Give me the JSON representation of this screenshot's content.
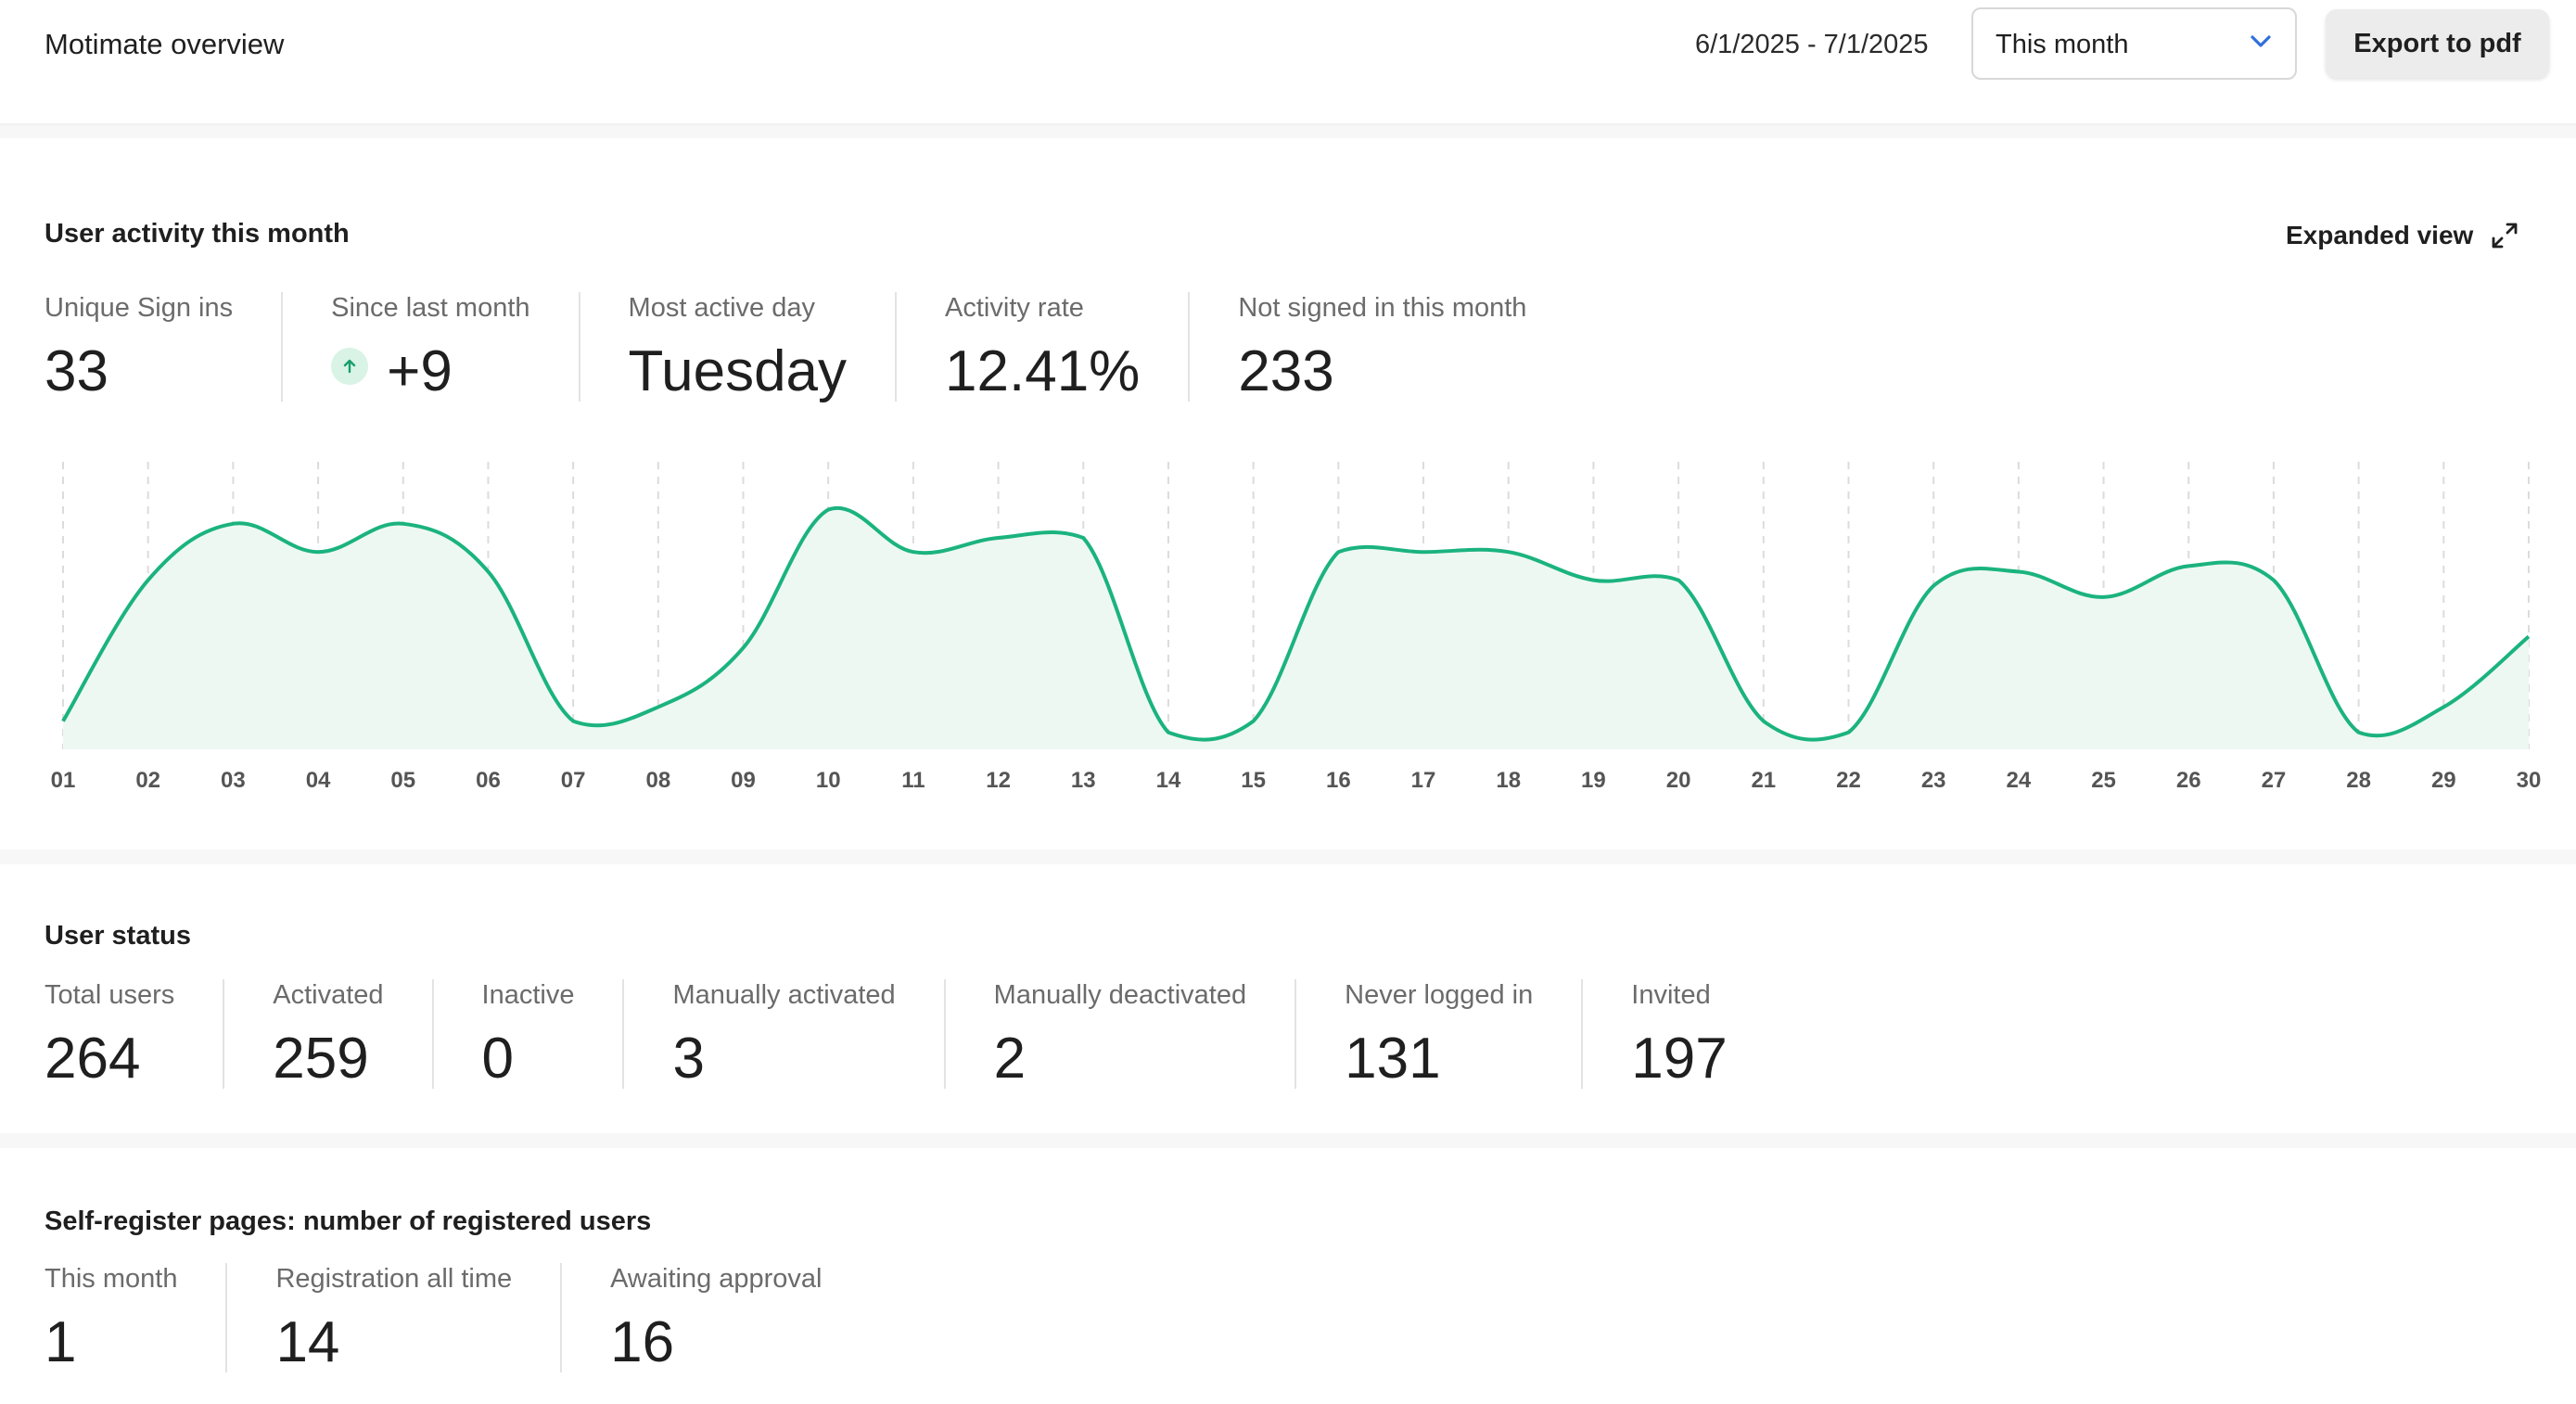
{
  "header": {
    "title": "Motimate overview",
    "date_range": "6/1/2025 - 7/1/2025",
    "period_select": {
      "selected": "This month"
    },
    "export_label": "Export to pdf"
  },
  "activity": {
    "title": "User activity this month",
    "expanded_label": "Expanded view",
    "metrics": [
      {
        "label": "Unique Sign ins",
        "value": "33"
      },
      {
        "label": "Since last month",
        "value": "+9"
      },
      {
        "label": "Most active day",
        "value": "Tuesday"
      },
      {
        "label": "Activity rate",
        "value": "12.41%"
      },
      {
        "label": "Not signed in this month",
        "value": "233"
      }
    ]
  },
  "chart_data": {
    "type": "area",
    "categories": [
      "01",
      "02",
      "03",
      "04",
      "05",
      "06",
      "07",
      "08",
      "09",
      "10",
      "11",
      "12",
      "13",
      "14",
      "15",
      "16",
      "17",
      "18",
      "19",
      "20",
      "21",
      "22",
      "23",
      "24",
      "25",
      "26",
      "27",
      "28",
      "29",
      "30"
    ],
    "series": [
      {
        "values": [
          0.1,
          0.6,
          0.8,
          0.7,
          0.8,
          0.63,
          0.1,
          0.15,
          0.36,
          0.85,
          0.7,
          0.75,
          0.75,
          0.06,
          0.1,
          0.7,
          0.7,
          0.7,
          0.6,
          0.6,
          0.1,
          0.06,
          0.58,
          0.63,
          0.54,
          0.65,
          0.6,
          0.06,
          0.15,
          0.4
        ]
      }
    ],
    "grid": "vertical dashed",
    "colors": {
      "line": "#1bb37f",
      "fill": "#eef8f3"
    }
  },
  "status": {
    "title": "User status",
    "metrics": [
      {
        "label": "Total users",
        "value": "264"
      },
      {
        "label": "Activated",
        "value": "259"
      },
      {
        "label": "Inactive",
        "value": "0"
      },
      {
        "label": "Manually activated",
        "value": "3"
      },
      {
        "label": "Manually deactivated",
        "value": "2"
      },
      {
        "label": "Never logged in",
        "value": "131"
      },
      {
        "label": "Invited",
        "value": "197"
      }
    ]
  },
  "selfreg": {
    "title": "Self-register pages: number of registered users",
    "metrics": [
      {
        "label": "This month",
        "value": "1"
      },
      {
        "label": "Registration all time",
        "value": "14"
      },
      {
        "label": "Awaiting approval",
        "value": "16"
      }
    ]
  }
}
